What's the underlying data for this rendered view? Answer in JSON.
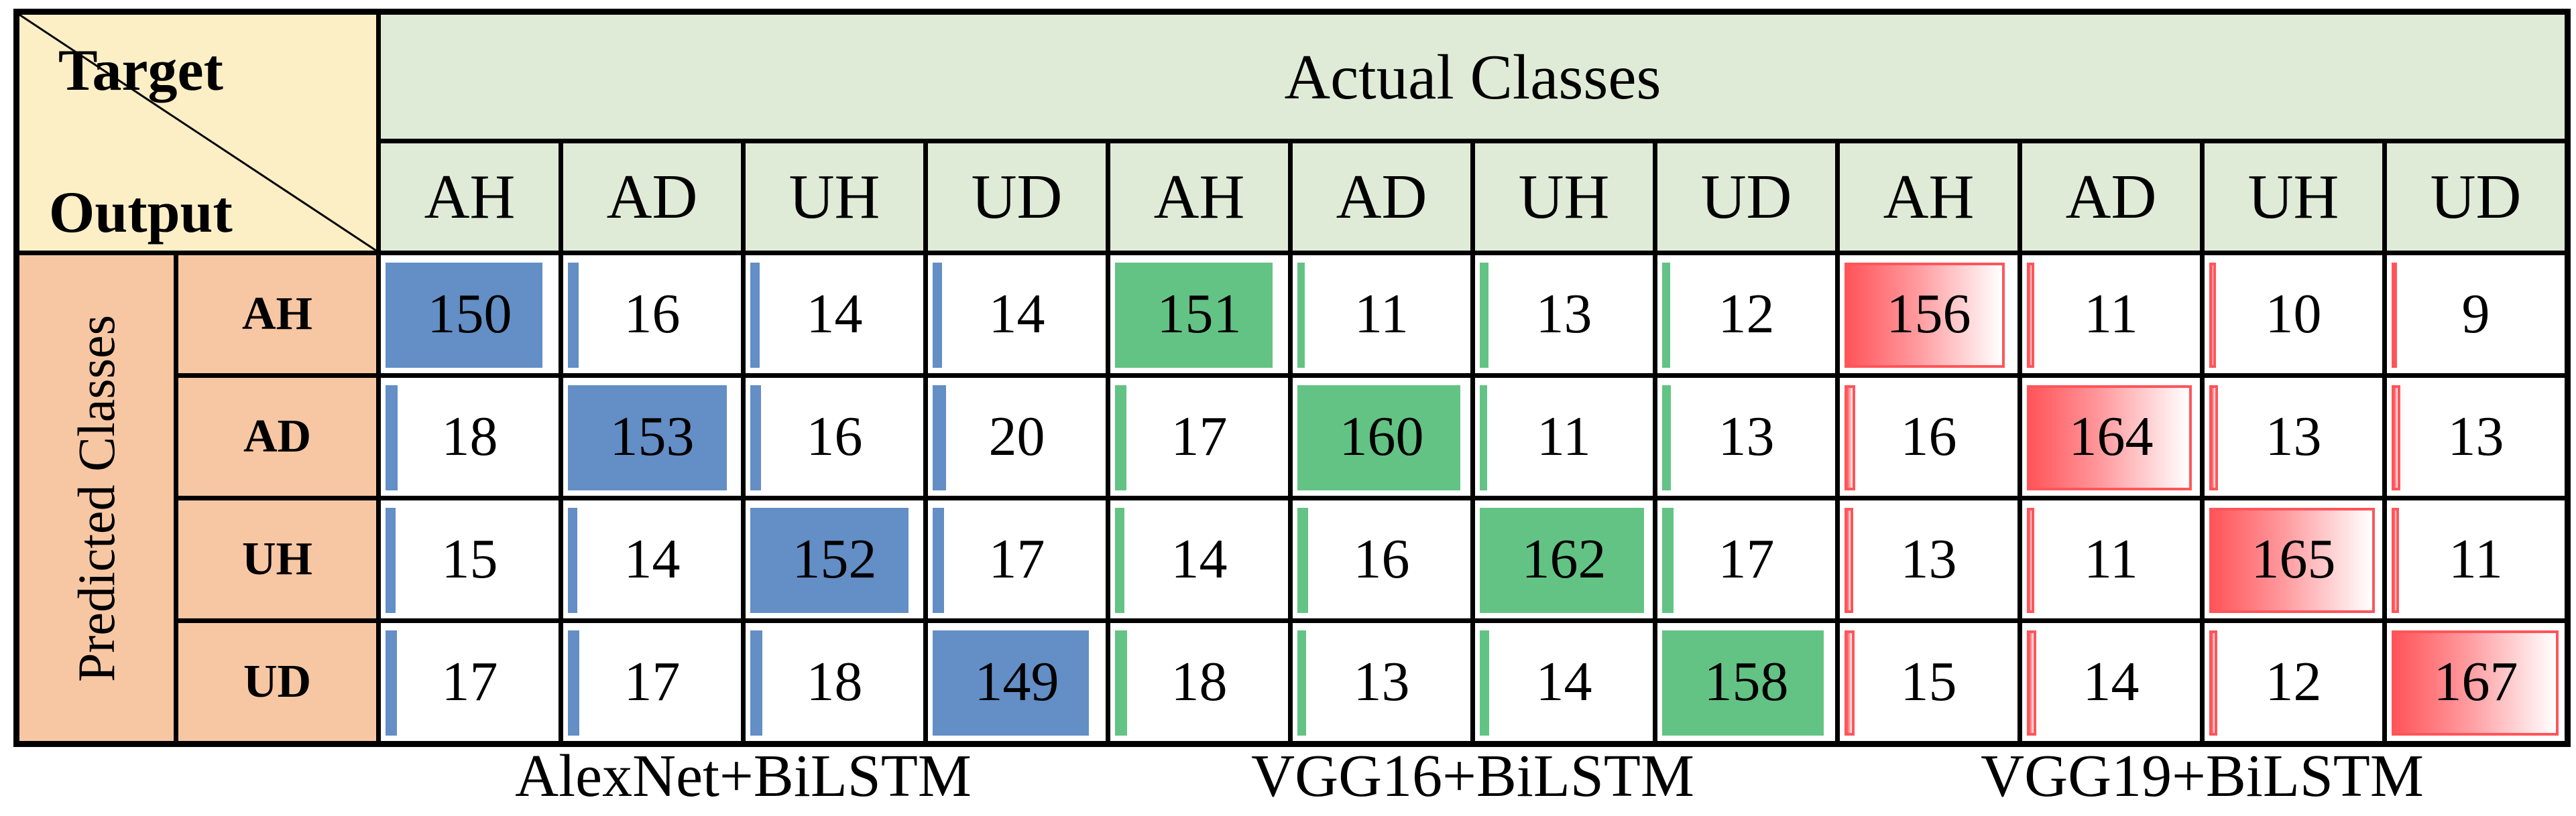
{
  "figure": {
    "corner": {
      "top_label": "Target",
      "bottom_label": "Output"
    },
    "column_axis_label": "Actual Classes",
    "row_axis_label": "Predicted Classes",
    "classes": [
      "AH",
      "AD",
      "UH",
      "UD"
    ],
    "models": [
      {
        "name": "AlexNet+BiLSTM",
        "bar_color": "#638EC6",
        "bar_style": "solid"
      },
      {
        "name": "VGG16+BiLSTM",
        "bar_color": "#63C384",
        "bar_style": "solid"
      },
      {
        "name": "VGG19+BiLSTM",
        "bar_color": "#FF555A",
        "bar_style": "gradient"
      }
    ],
    "colors": {
      "corner_bg": "#FCEFC6",
      "header_bg": "#E0EBD7",
      "side_bg": "#F7C7A3",
      "grid_lines": "#000000",
      "cell_bg": "#FFFFFF",
      "text": "#000000"
    }
  },
  "chart_data": {
    "type": "table",
    "subtype": "confusion-matrix-with-data-bars",
    "col_axis": "Actual Classes",
    "row_axis": "Predicted Classes",
    "categories": [
      "AH",
      "AD",
      "UH",
      "UD"
    ],
    "series": [
      {
        "name": "AlexNet+BiLSTM",
        "matrix": [
          [
            150,
            16,
            14,
            14
          ],
          [
            18,
            153,
            16,
            20
          ],
          [
            15,
            14,
            152,
            17
          ],
          [
            17,
            17,
            18,
            149
          ]
        ]
      },
      {
        "name": "VGG16+BiLSTM",
        "matrix": [
          [
            151,
            11,
            13,
            12
          ],
          [
            17,
            160,
            11,
            13
          ],
          [
            14,
            16,
            162,
            17
          ],
          [
            18,
            13,
            14,
            158
          ]
        ]
      },
      {
        "name": "VGG19+BiLSTM",
        "matrix": [
          [
            156,
            11,
            10,
            9
          ],
          [
            16,
            164,
            13,
            13
          ],
          [
            13,
            11,
            165,
            11
          ],
          [
            15,
            14,
            12,
            167
          ]
        ]
      }
    ],
    "legend_position": "bottom",
    "notes_visible_styling": "diagonal cells carry near-full-width colored data bars; off-diagonal cells carry thin bars proportional to value"
  }
}
